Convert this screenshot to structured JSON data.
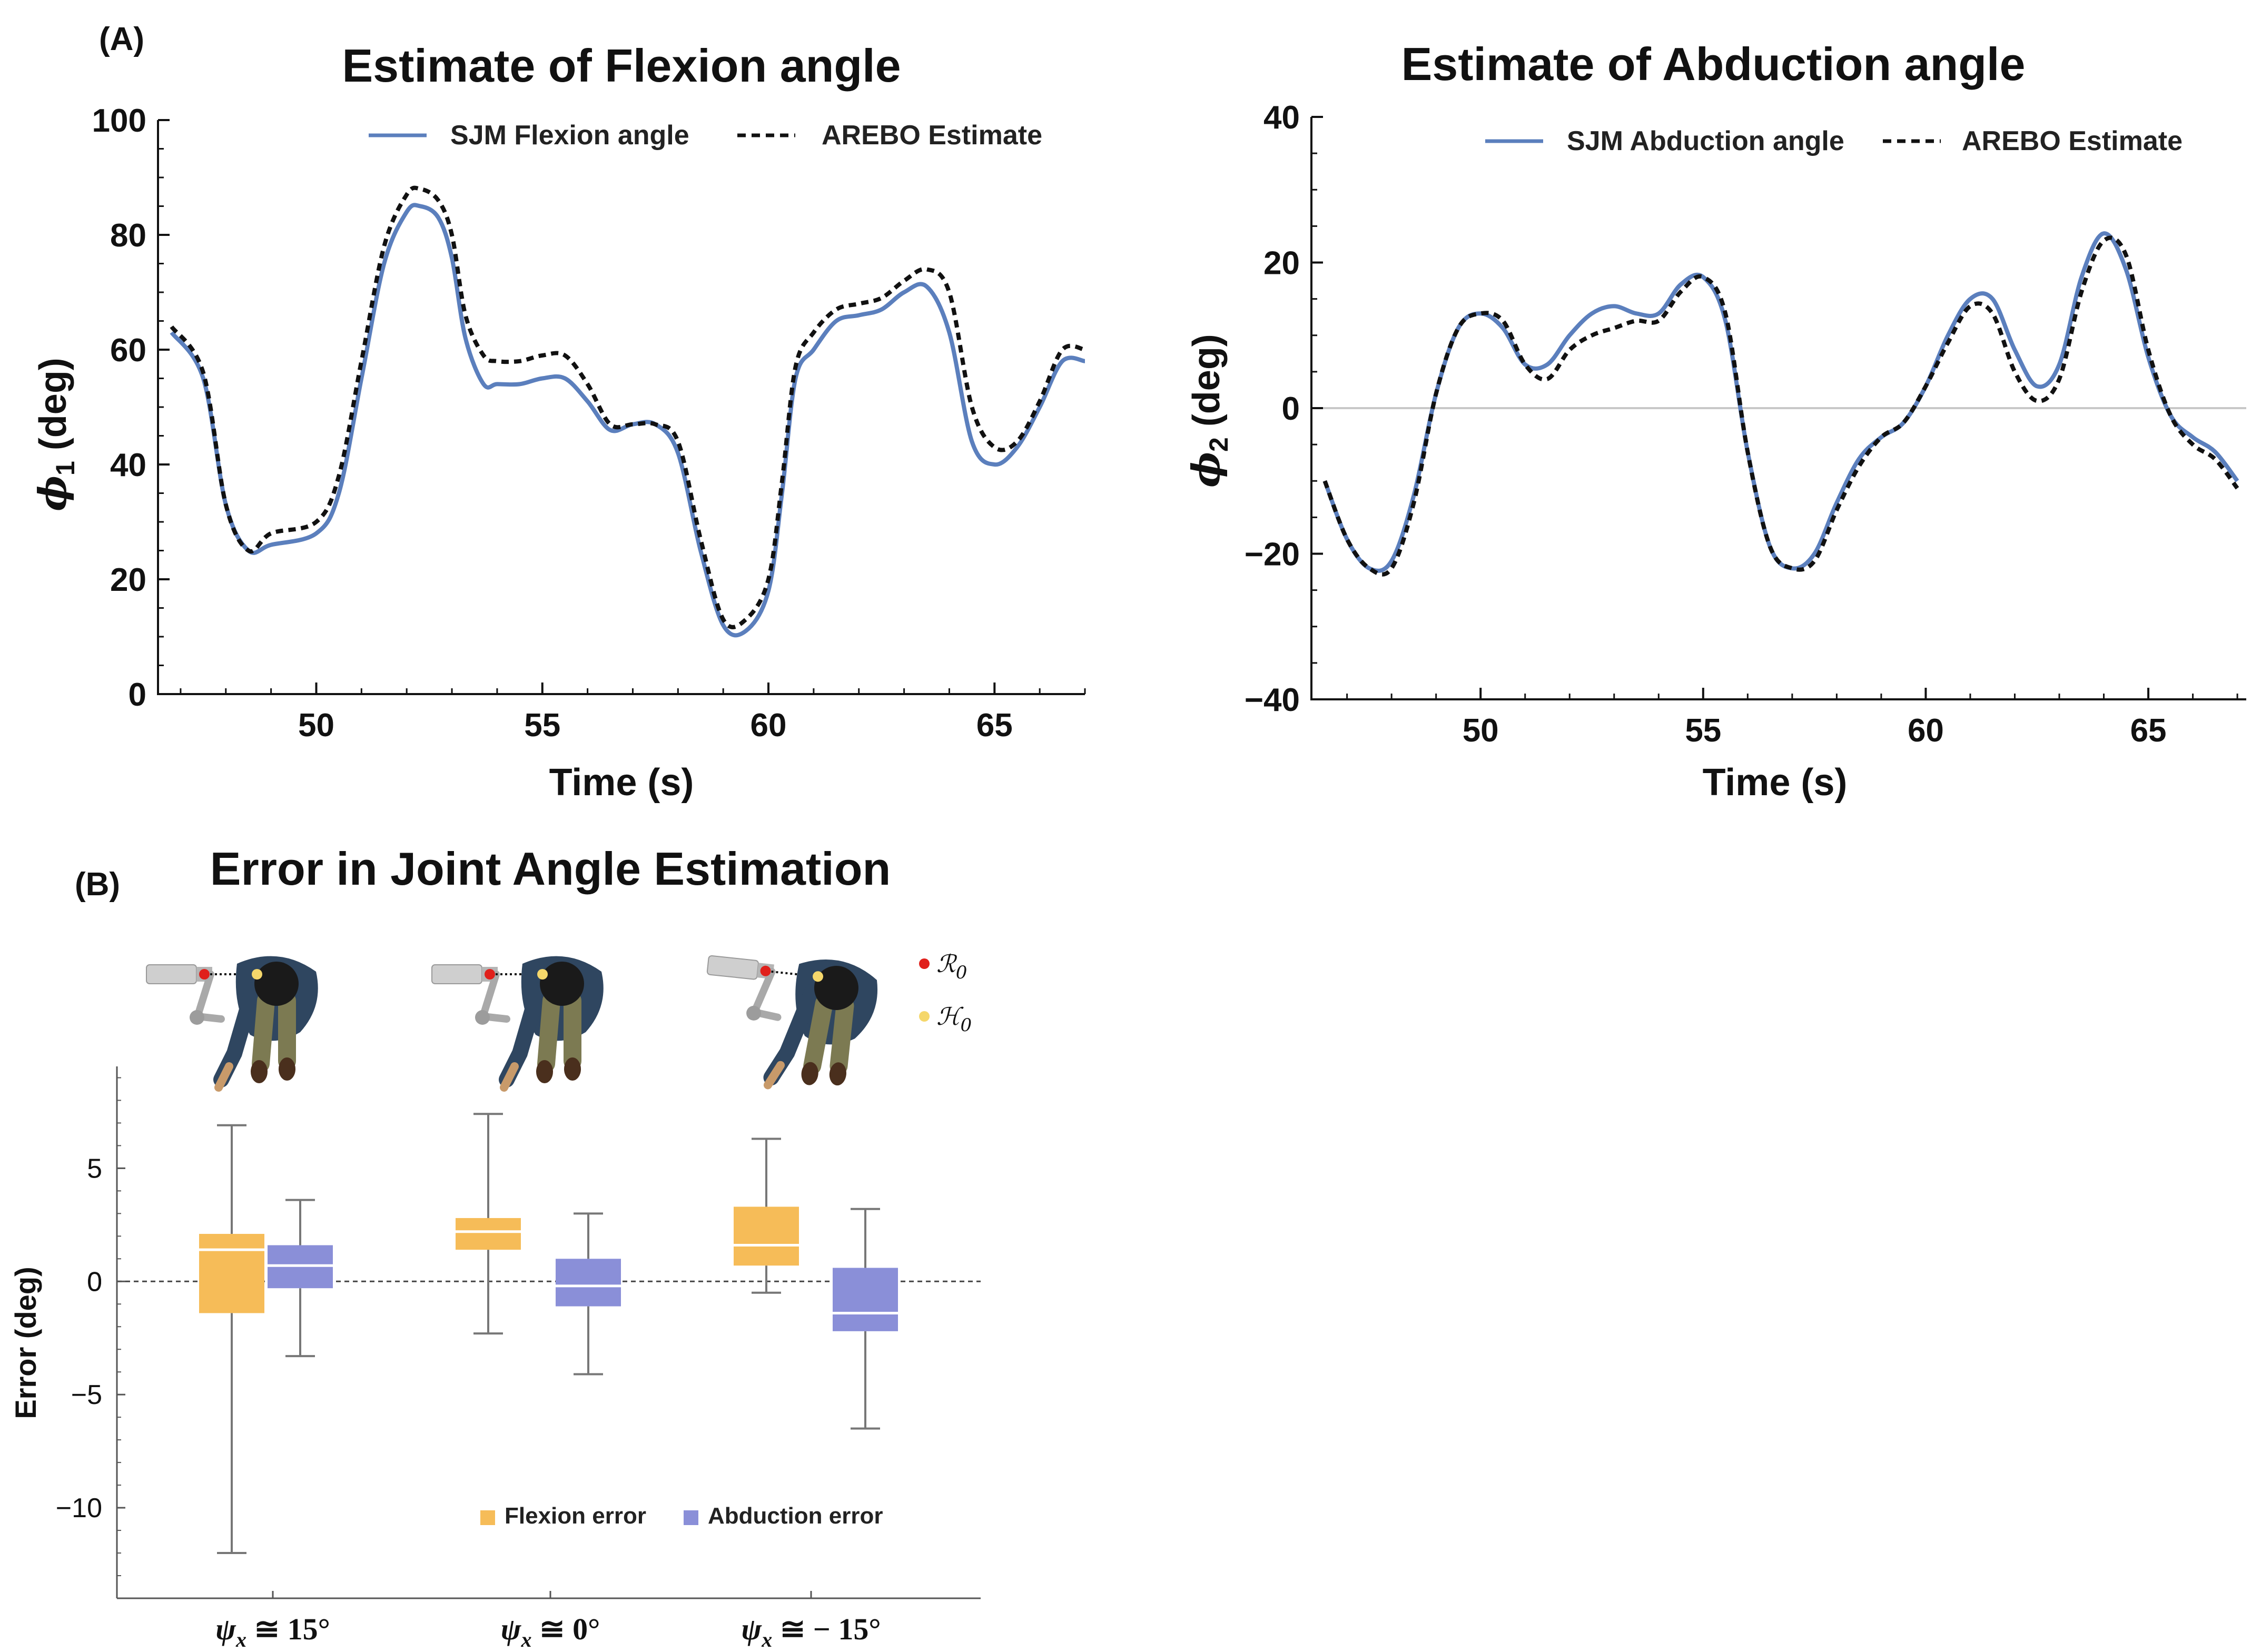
{
  "panel_a_label": "(A)",
  "panel_b_label": "(B)",
  "chart_data": [
    {
      "type": "line",
      "title": "Estimate of Flexion angle",
      "xlabel": "Time (s)",
      "ylabel": "ϕ1 (deg)",
      "ylabel_main": "ϕ",
      "ylabel_sub": "1",
      "ylabel_unit": " (deg)",
      "xlim": [
        46.5,
        67
      ],
      "ylim": [
        0,
        100
      ],
      "xticks": [
        "50",
        "55",
        "60",
        "65"
      ],
      "yticks": [
        "0",
        "20",
        "40",
        "60",
        "80",
        "100"
      ],
      "series": [
        {
          "name": "SJM Flexion angle",
          "color": "#5b7fbd",
          "style": "solid",
          "x": [
            46.8,
            47.5,
            48.0,
            48.5,
            49.0,
            50.0,
            50.5,
            51.0,
            51.5,
            52.0,
            52.3,
            52.7,
            53.0,
            53.3,
            53.7,
            54.0,
            54.5,
            55.0,
            55.5,
            56.0,
            56.5,
            57.0,
            57.5,
            58.0,
            58.5,
            59.0,
            59.5,
            60.0,
            60.3,
            60.6,
            61.0,
            61.5,
            62.0,
            62.5,
            63.0,
            63.5,
            64.0,
            64.5,
            65.0,
            65.5,
            66.0,
            66.5,
            67.0
          ],
          "y": [
            63,
            55,
            33,
            25,
            26,
            28,
            35,
            55,
            75,
            84,
            85,
            83,
            76,
            62,
            54,
            54,
            54,
            55,
            55,
            51,
            46,
            47,
            47,
            42,
            25,
            12,
            11,
            18,
            35,
            55,
            60,
            65,
            66,
            67,
            70,
            71,
            63,
            44,
            40,
            43,
            50,
            58,
            58
          ]
        },
        {
          "name": "AREBO Estimate",
          "color": "#111111",
          "style": "dashed",
          "x": [
            46.8,
            47.5,
            48.0,
            48.5,
            49.0,
            50.0,
            50.5,
            51.0,
            51.5,
            52.0,
            52.3,
            52.7,
            53.0,
            53.3,
            53.7,
            54.0,
            54.5,
            55.0,
            55.5,
            56.0,
            56.5,
            57.0,
            57.5,
            58.0,
            58.5,
            59.0,
            59.5,
            60.0,
            60.3,
            60.6,
            61.0,
            61.5,
            62.0,
            62.5,
            63.0,
            63.5,
            64.0,
            64.5,
            65.0,
            65.5,
            66.0,
            66.5,
            67.0
          ],
          "y": [
            64,
            56,
            33,
            25,
            28,
            30,
            38,
            58,
            78,
            87,
            88,
            86,
            80,
            66,
            59,
            58,
            58,
            59,
            59,
            54,
            47,
            47,
            47,
            44,
            27,
            13,
            13,
            20,
            37,
            57,
            63,
            67,
            68,
            69,
            72,
            74,
            70,
            50,
            43,
            44,
            51,
            60,
            60
          ]
        }
      ]
    },
    {
      "type": "line",
      "title": "Estimate of Abduction angle",
      "xlabel": "Time (s)",
      "ylabel": "ϕ2 (deg)",
      "ylabel_main": "ϕ",
      "ylabel_sub": "2",
      "ylabel_unit": " (deg)",
      "xlim": [
        46.2,
        67.2
      ],
      "ylim": [
        -40,
        40
      ],
      "xticks": [
        "50",
        "55",
        "60",
        "65"
      ],
      "yticks": [
        "−40",
        "−20",
        "0",
        "20",
        "40"
      ],
      "series": [
        {
          "name": "SJM Abduction angle",
          "color": "#5b7fbd",
          "style": "solid",
          "x": [
            46.5,
            47.0,
            47.5,
            48.0,
            48.5,
            49.0,
            49.5,
            50.0,
            50.5,
            51.0,
            51.5,
            52.0,
            52.5,
            53.0,
            53.5,
            54.0,
            54.5,
            55.0,
            55.5,
            56.0,
            56.5,
            57.0,
            57.5,
            58.0,
            58.5,
            59.0,
            59.5,
            60.0,
            60.5,
            61.0,
            61.5,
            62.0,
            62.5,
            63.0,
            63.5,
            64.0,
            64.5,
            65.0,
            65.5,
            66.0,
            66.5,
            67.0
          ],
          "y": [
            -10,
            -18,
            -22,
            -21,
            -12,
            2,
            11,
            13,
            11,
            6,
            6,
            10,
            13,
            14,
            13,
            13,
            17,
            18,
            12,
            -6,
            -19,
            -22,
            -20,
            -13,
            -7,
            -4,
            -2,
            3,
            10,
            15,
            15,
            8,
            3,
            6,
            18,
            24,
            19,
            7,
            -1,
            -4,
            -6,
            -10
          ]
        },
        {
          "name": "AREBO Estimate",
          "color": "#111111",
          "style": "dashed",
          "x": [
            46.5,
            47.0,
            47.5,
            48.0,
            48.5,
            49.0,
            49.5,
            50.0,
            50.5,
            51.0,
            51.5,
            52.0,
            52.5,
            53.0,
            53.5,
            54.0,
            54.5,
            55.0,
            55.5,
            56.0,
            56.5,
            57.0,
            57.5,
            58.0,
            58.5,
            59.0,
            59.5,
            60.0,
            60.5,
            61.0,
            61.5,
            62.0,
            62.5,
            63.0,
            63.5,
            64.0,
            64.5,
            65.0,
            65.5,
            66.0,
            66.5,
            67.0
          ],
          "y": [
            -10,
            -18,
            -22,
            -22,
            -13,
            2,
            11,
            13,
            12,
            6,
            4,
            8,
            10,
            11,
            12,
            12,
            16,
            18,
            13,
            -6,
            -19,
            -22,
            -21,
            -14,
            -8,
            -4,
            -2,
            3,
            9,
            14,
            13,
            5,
            1,
            4,
            16,
            23,
            21,
            8,
            -1,
            -5,
            -7,
            -11
          ]
        }
      ]
    },
    {
      "type": "box",
      "title": "Error in Joint  Angle  Estimation",
      "xlabel": "",
      "ylabel": "Error (deg)",
      "ylim": [
        -14,
        9.5
      ],
      "yticks": [
        "−10",
        "−5",
        "0",
        "5"
      ],
      "categories": [
        "ψx ≅ 15°",
        "ψx ≅ 0°",
        "ψx ≅ − 15°"
      ],
      "category_parts": [
        {
          "sym": "ψ",
          "sub": "x",
          "rest": " ≅ 15°"
        },
        {
          "sym": "ψ",
          "sub": "x",
          "rest": " ≅ 0°"
        },
        {
          "sym": "ψ",
          "sub": "x",
          "rest": " ≅ − 15°"
        }
      ],
      "legend": [
        "Flexion error",
        "Abduction error"
      ],
      "colors": {
        "flexion": "#f6bc58",
        "abduction": "#8a8fd8",
        "median": "#ffffff",
        "whisker": "#777777"
      },
      "series": [
        {
          "name": "Flexion error",
          "boxes": [
            {
              "min": -12.0,
              "q1": -1.4,
              "median": 1.4,
              "q3": 2.1,
              "max": 6.9
            },
            {
              "min": -2.3,
              "q1": 1.4,
              "median": 2.2,
              "q3": 2.8,
              "max": 7.4
            },
            {
              "min": -0.5,
              "q1": 0.7,
              "median": 1.6,
              "q3": 3.3,
              "max": 6.3
            }
          ]
        },
        {
          "name": "Abduction error",
          "boxes": [
            {
              "min": -3.3,
              "q1": -0.3,
              "median": 0.7,
              "q3": 1.6,
              "max": 3.6
            },
            {
              "min": -4.1,
              "q1": -1.1,
              "median": -0.2,
              "q3": 1.0,
              "max": 3.0
            },
            {
              "min": -6.5,
              "q1": -2.2,
              "median": -1.4,
              "q3": 0.6,
              "max": 3.2
            }
          ]
        }
      ]
    }
  ],
  "markers": [
    {
      "symbol": "ℛ",
      "sub": "0",
      "color": "#e0201b"
    },
    {
      "symbol": "ℋ",
      "sub": "0",
      "color": "#f5d76b"
    }
  ]
}
